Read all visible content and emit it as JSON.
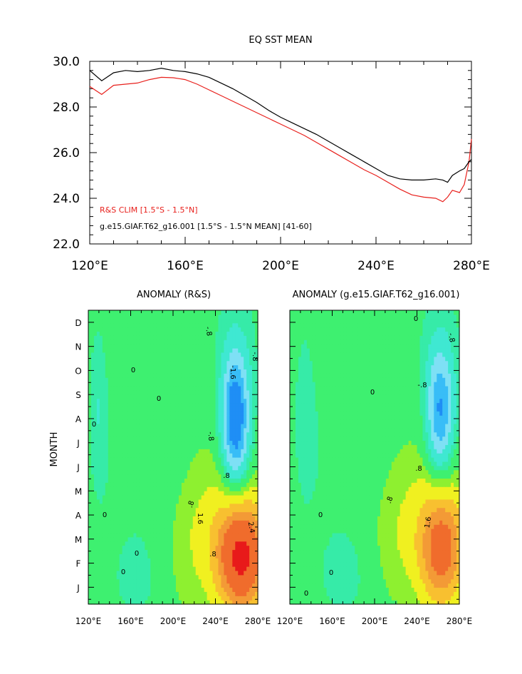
{
  "colors": {
    "model_line": "#000000",
    "obs_line": "#e8201c",
    "levels": [
      "#3a4cf2",
      "#1f8ef5",
      "#38bdf7",
      "#7ee0f5",
      "#3fe8d2",
      "#36eba8",
      "#3ef070",
      "#8ef030",
      "#f0f020",
      "#f8c030",
      "#f39a36",
      "#f06c2c",
      "#e81a1a"
    ]
  },
  "chart_data": [
    {
      "type": "line",
      "title": "EQ SST MEAN",
      "xlim": [
        120,
        280
      ],
      "ylim": [
        22.0,
        30.0
      ],
      "xticks": [
        "120°E",
        "160°E",
        "200°E",
        "240°E",
        "280°E"
      ],
      "yticks": [
        "22.0",
        "24.0",
        "26.0",
        "28.0",
        "30.0"
      ],
      "x": [
        120,
        125,
        130,
        135,
        140,
        145,
        150,
        155,
        160,
        165,
        170,
        175,
        180,
        185,
        190,
        195,
        200,
        205,
        210,
        215,
        220,
        225,
        230,
        235,
        240,
        245,
        250,
        255,
        260,
        265,
        268,
        270,
        272,
        275,
        277,
        279,
        280
      ],
      "series": [
        {
          "name": "R&S CLIM [1.5°S - 1.5°N]",
          "color": "#e8201c",
          "values": [
            28.9,
            28.55,
            28.95,
            29.0,
            29.05,
            29.2,
            29.3,
            29.28,
            29.2,
            29.0,
            28.75,
            28.5,
            28.25,
            28.0,
            27.75,
            27.5,
            27.25,
            27.0,
            26.75,
            26.45,
            26.15,
            25.85,
            25.55,
            25.25,
            25.0,
            24.7,
            24.4,
            24.15,
            24.05,
            24.0,
            23.85,
            24.05,
            24.35,
            24.25,
            24.6,
            25.6,
            26.6
          ]
        },
        {
          "name": "g.e15.GIAF.T62_g16.001 [1.5°S - 1.5°N MEAN] [41-60]",
          "color": "#000000",
          "values": [
            29.6,
            29.15,
            29.5,
            29.6,
            29.55,
            29.6,
            29.7,
            29.6,
            29.55,
            29.45,
            29.3,
            29.05,
            28.8,
            28.5,
            28.2,
            27.85,
            27.55,
            27.3,
            27.05,
            26.8,
            26.5,
            26.2,
            25.9,
            25.6,
            25.3,
            25.0,
            24.85,
            24.8,
            24.8,
            24.85,
            24.8,
            24.7,
            25.0,
            25.2,
            25.3,
            25.6,
            25.7
          ]
        }
      ],
      "legend_placement": "bottom-left"
    },
    {
      "type": "heatmap",
      "title": "ANOMALY (R&S)",
      "ylabel": "MONTH",
      "xlim": [
        120,
        280
      ],
      "xticks": [
        "120°E",
        "160°E",
        "200°E",
        "240°E",
        "280°E"
      ],
      "yticks": [
        "J",
        "F",
        "M",
        "A",
        "M",
        "J",
        "J",
        "A",
        "S",
        "O",
        "N",
        "D"
      ],
      "contour_labels": [
        "-.8",
        "-.8",
        "-1.6",
        "-.8",
        "0",
        "0",
        "0",
        ".8",
        ".8",
        "1.6",
        "2.4",
        ".8",
        "0",
        "0",
        "0"
      ],
      "features": [
        {
          "lon": 259,
          "month": 8.0,
          "amp": -2.2,
          "slon": 9,
          "smon": 1.9
        },
        {
          "lon": 265,
          "month": 2.3,
          "amp": 2.6,
          "slon": 16,
          "smon": 1.6
        },
        {
          "lon": 230,
          "month": 3.0,
          "amp": 0.45,
          "slon": 22,
          "smon": 2.2
        },
        {
          "lon": 130,
          "month": 8.5,
          "amp": -0.4,
          "slon": 6,
          "smon": 2.5
        },
        {
          "lon": 165,
          "month": 1.2,
          "amp": -0.35,
          "slon": 18,
          "smon": 1.5
        }
      ]
    },
    {
      "type": "heatmap",
      "title": "ANOMALY (g.e15.GIAF.T62_g16.001)",
      "xlim": [
        120,
        280
      ],
      "xticks": [
        "120°E",
        "160°E",
        "200°E",
        "240°E",
        "280°E"
      ],
      "yticks": [
        "J",
        "F",
        "M",
        "A",
        "M",
        "J",
        "J",
        "A",
        "S",
        "O",
        "N",
        "D"
      ],
      "contour_labels": [
        "-.8",
        "-.8",
        "0",
        "0",
        ".8",
        ".8",
        "1.6",
        "0",
        "0",
        "0"
      ],
      "features": [
        {
          "lon": 262,
          "month": 8.3,
          "amp": -1.7,
          "slon": 9,
          "smon": 1.8
        },
        {
          "lon": 264,
          "month": 2.6,
          "amp": 1.9,
          "slon": 15,
          "smon": 1.7
        },
        {
          "lon": 230,
          "month": 3.2,
          "amp": 0.4,
          "slon": 22,
          "smon": 2.2
        },
        {
          "lon": 135,
          "month": 8.5,
          "amp": -0.35,
          "slon": 7,
          "smon": 2.5
        },
        {
          "lon": 170,
          "month": 1.3,
          "amp": -0.35,
          "slon": 20,
          "smon": 1.5
        }
      ]
    }
  ]
}
